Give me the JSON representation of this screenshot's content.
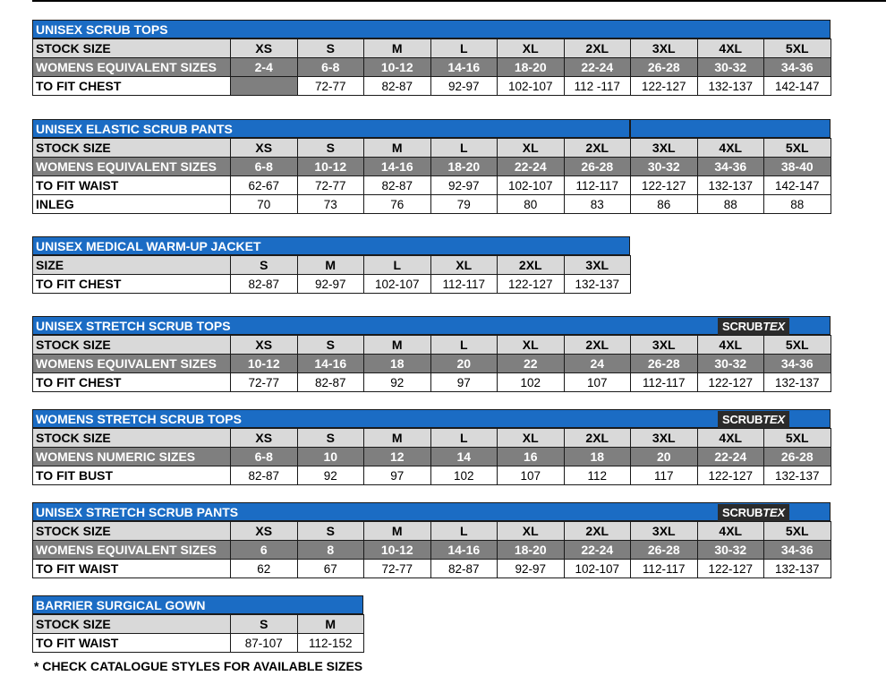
{
  "sections": [
    {
      "title": "UNISEX SCRUB TOPS",
      "badge": null,
      "rows": [
        {
          "label": "STOCK SIZE",
          "cells": [
            "XS",
            "S",
            "M",
            "L",
            "XL",
            "2XL",
            "3XL",
            "4XL",
            "5XL"
          ]
        },
        {
          "label": "WOMENS EQUIVALENT SIZES",
          "cells": [
            "2-4",
            "6-8",
            "10-12",
            "14-16",
            "18-20",
            "22-24",
            "26-28",
            "30-32",
            "34-36"
          ]
        },
        {
          "label": "TO FIT CHEST",
          "cells": [
            "",
            "72-77",
            "82-87",
            "92-97",
            "102-107",
            "112 -117",
            "122-127",
            "132-137",
            "142-147"
          ]
        }
      ]
    },
    {
      "title": "UNISEX ELASTIC SCRUB PANTS",
      "badge": null,
      "rows": [
        {
          "label": "STOCK SIZE",
          "cells": [
            "XS",
            "S",
            "M",
            "L",
            "XL",
            "2XL",
            "3XL",
            "4XL",
            "5XL"
          ]
        },
        {
          "label": "WOMENS EQUIVALENT SIZES",
          "cells": [
            "6-8",
            "10-12",
            "14-16",
            "18-20",
            "22-24",
            "26-28",
            "30-32",
            "34-36",
            "38-40"
          ]
        },
        {
          "label": "TO FIT WAIST",
          "cells": [
            "62-67",
            "72-77",
            "82-87",
            "92-97",
            "102-107",
            "112-117",
            "122-127",
            "132-137",
            "142-147"
          ]
        },
        {
          "label": "INLEG",
          "cells": [
            "70",
            "73",
            "76",
            "79",
            "80",
            "83",
            "86",
            "88",
            "88"
          ]
        }
      ]
    },
    {
      "title": "UNISEX MEDICAL WARM-UP JACKET",
      "badge": null,
      "rows": [
        {
          "label": "SIZE",
          "cells": [
            "S",
            "M",
            "L",
            "XL",
            "2XL",
            "3XL"
          ]
        },
        {
          "label": "TO FIT CHEST",
          "cells": [
            "82-87",
            "92-97",
            "102-107",
            "112-117",
            "122-127",
            "132-137"
          ]
        }
      ]
    },
    {
      "title": "UNISEX STRETCH SCRUB TOPS",
      "badge": {
        "word": "SCRUB",
        "brand": "TEX"
      },
      "rows": [
        {
          "label": "STOCK SIZE",
          "cells": [
            "XS",
            "S",
            "M",
            "L",
            "XL",
            "2XL",
            "3XL",
            "4XL",
            "5XL"
          ]
        },
        {
          "label": "WOMENS EQUIVALENT SIZES",
          "cells": [
            "10-12",
            "14-16",
            "18",
            "20",
            "22",
            "24",
            "26-28",
            "30-32",
            "34-36"
          ]
        },
        {
          "label": "TO FIT CHEST",
          "cells": [
            "72-77",
            "82-87",
            "92",
            "97",
            "102",
            "107",
            "112-117",
            "122-127",
            "132-137"
          ]
        }
      ]
    },
    {
      "title": "WOMENS STRETCH SCRUB TOPS",
      "badge": {
        "word": "SCRUB",
        "brand": "TEX"
      },
      "rows": [
        {
          "label": "STOCK SIZE",
          "cells": [
            "XS",
            "S",
            "M",
            "L",
            "XL",
            "2XL",
            "3XL",
            "4XL",
            "5XL"
          ]
        },
        {
          "label": "WOMENS NUMERIC SIZES",
          "cells": [
            "6-8",
            "10",
            "12",
            "14",
            "16",
            "18",
            "20",
            "22-24",
            "26-28"
          ]
        },
        {
          "label": "TO FIT BUST",
          "cells": [
            "82-87",
            "92",
            "97",
            "102",
            "107",
            "112",
            "117",
            "122-127",
            "132-137"
          ]
        }
      ]
    },
    {
      "title": "UNISEX STRETCH SCRUB PANTS",
      "badge": {
        "word": "SCRUB",
        "brand": "TEX"
      },
      "rows": [
        {
          "label": "STOCK SIZE",
          "cells": [
            "XS",
            "S",
            "M",
            "L",
            "XL",
            "2XL",
            "3XL",
            "4XL",
            "5XL"
          ]
        },
        {
          "label": "WOMENS EQUIVALENT SIZES",
          "cells": [
            "6",
            "8",
            "10-12",
            "14-16",
            "18-20",
            "22-24",
            "26-28",
            "30-32",
            "34-36"
          ]
        },
        {
          "label": "TO FIT WAIST",
          "cells": [
            "62",
            "67",
            "72-77",
            "82-87",
            "92-97",
            "102-107",
            "112-117",
            "122-127",
            "132-137"
          ]
        }
      ]
    },
    {
      "title": "BARRIER SURGICAL GOWN",
      "badge": null,
      "rows": [
        {
          "label": "STOCK SIZE",
          "cells": [
            "S",
            "M"
          ]
        },
        {
          "label": "TO FIT WAIST",
          "cells": [
            "87-107",
            "112-152"
          ]
        }
      ]
    }
  ],
  "footnote": "* CHECK CATALOGUE STYLES FOR AVAILABLE SIZES",
  "colors": {
    "header_blue": "#1b6cc4",
    "size_row_grey": "#d9d9d9",
    "equiv_row_dark": "#7f7f7f",
    "badge_black": "#2b2b2b"
  }
}
